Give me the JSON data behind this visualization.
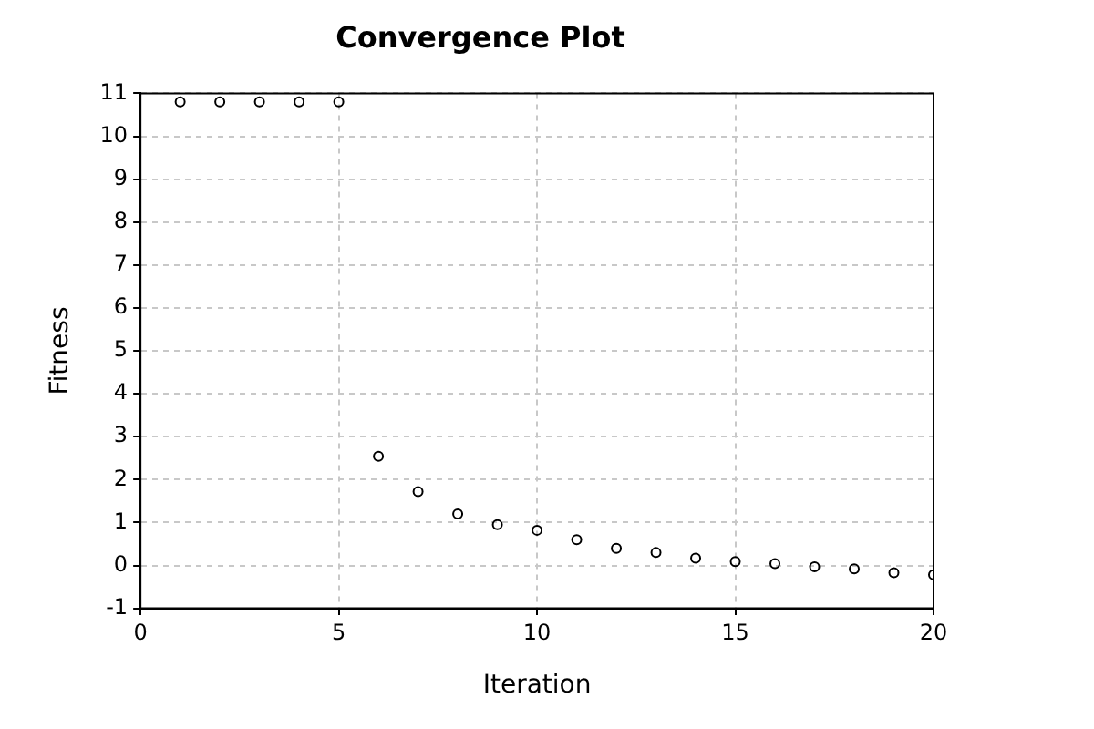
{
  "chart_data": {
    "type": "scatter",
    "title": "Convergence Plot",
    "xlabel": "Iteration",
    "ylabel": "Fitness",
    "x": [
      1,
      2,
      3,
      4,
      5,
      6,
      7,
      8,
      9,
      10,
      11,
      12,
      13,
      14,
      15,
      16,
      17,
      18,
      19,
      20
    ],
    "series": [
      {
        "color": "#000000",
        "values": [
          10.8,
          10.8,
          10.8,
          10.8,
          10.8,
          2.54,
          1.72,
          1.2,
          0.95,
          0.82,
          0.6,
          0.4,
          0.3,
          0.17,
          0.09,
          0.04,
          -0.03,
          -0.08,
          -0.17,
          -0.22
        ]
      }
    ],
    "xlim": [
      0,
      20
    ],
    "xticks": [
      0,
      5,
      10,
      15,
      20
    ],
    "ylim": [
      -1,
      11
    ],
    "yticks": [
      -1,
      0,
      1,
      2,
      3,
      4,
      5,
      6,
      7,
      8,
      9,
      10,
      11
    ],
    "grid": true,
    "legend": false,
    "marker": "circle"
  }
}
